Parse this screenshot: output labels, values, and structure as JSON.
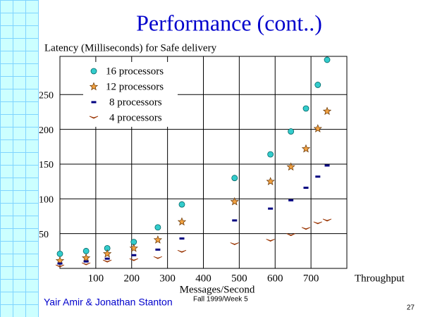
{
  "title": "Performance (cont..)",
  "footer": {
    "authors": "Yair Amir & Jonathan Stanton",
    "term": "Fall 1999/Week 5",
    "page": "27"
  },
  "chart_data": {
    "type": "scatter",
    "ylabel": "Latency (Milliseconds) for Safe delivery",
    "xlabel": "Messages/Second",
    "xaxis_title": "Throughput",
    "x": [
      0,
      73,
      132,
      206,
      273,
      340,
      487,
      587,
      644,
      686,
      719,
      745
    ],
    "series": [
      {
        "name": "16 processors",
        "color": "#33cccc",
        "marker": "circle",
        "values": [
          21,
          25,
          29,
          38,
          59,
          92,
          130,
          164,
          197,
          230,
          264,
          300
        ]
      },
      {
        "name": "12 processors",
        "color": "#f0a040",
        "marker": "star",
        "values": [
          11,
          15,
          21,
          29,
          41,
          67,
          96,
          125,
          146,
          172,
          201,
          226
        ]
      },
      {
        "name": "8 processors",
        "color": "#000080",
        "marker": "dash",
        "values": [
          7,
          10,
          14,
          19,
          27,
          43,
          69,
          86,
          98,
          116,
          132,
          148
        ]
      },
      {
        "name": "4 processors",
        "color": "#993300",
        "marker": "chevron",
        "values": [
          3,
          6,
          10,
          12,
          15,
          24,
          35,
          40,
          48,
          57,
          65,
          69
        ]
      }
    ],
    "xlim": [
      0,
      800
    ],
    "ylim": [
      0,
      305
    ],
    "xticks": [
      100,
      200,
      300,
      400,
      500,
      600,
      700
    ],
    "yticks": [
      50,
      100,
      150,
      200,
      250
    ],
    "grid": true
  }
}
